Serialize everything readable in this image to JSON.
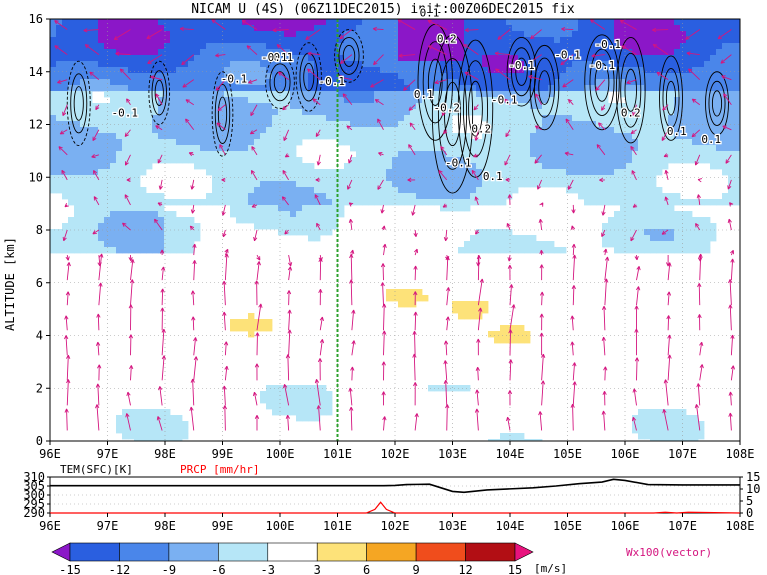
{
  "title": "NICAM U (4S) (06Z11DEC2015) init:00Z06DEC2015 fix",
  "colorbar_unit": "[m/s]",
  "vector_label": "Wx100(vector)",
  "colors": {
    "vector": "#d4157f",
    "contour": "#000000",
    "highlight_line": "#2ca02c",
    "tem_line": "#000000",
    "prcp_line": "#ff0000",
    "prcp_label": "#ff0000"
  },
  "chart_data": [
    {
      "type": "heatmap",
      "description_kind": "longitude-altitude cross section",
      "title": "NICAM U (4S) (06Z11DEC2015) init:00Z06DEC2015 fix",
      "xlabel": "",
      "ylabel": "ALTITUDE [km]",
      "x_ticks": [
        "96E",
        "97E",
        "98E",
        "99E",
        "100E",
        "101E",
        "102E",
        "103E",
        "104E",
        "105E",
        "106E",
        "107E",
        "108E"
      ],
      "x_range": [
        96,
        108
      ],
      "y_ticks": [
        0,
        2,
        4,
        6,
        8,
        10,
        12,
        14,
        16
      ],
      "y_range": [
        0,
        16
      ],
      "grid": true,
      "highlight_longitude": 101,
      "colorbar": {
        "levels": [
          -15,
          -12,
          -9,
          -6,
          -3,
          3,
          6,
          9,
          12,
          15
        ],
        "tick_labels": [
          "-15",
          "-12",
          "-9",
          "-6",
          "-3",
          "3",
          "6",
          "9",
          "12",
          "15"
        ],
        "colors": [
          "#8b17c8",
          "#2a5fe0",
          "#4a86ea",
          "#7ab0f2",
          "#b6e6f7",
          "#ffffff",
          "#fde279",
          "#f5a623",
          "#f04d1c",
          "#b20e14",
          "#e8137e"
        ],
        "unit": "[m/s]"
      },
      "contour_labels": [
        "-0.1",
        "-0.1",
        "-0.1",
        "-0.1",
        "-0.1",
        "-0.1",
        "-0.1",
        "-0.1",
        "-0.1",
        "-0.1",
        "-0.1",
        "0.1",
        "0.1",
        "0.1",
        "0.1",
        "0.1",
        "0.2",
        "0.2",
        "0.2",
        "-0.2"
      ],
      "wind_regions": [
        {
          "band": "upper",
          "y": [
            13,
            16
          ],
          "level": -12
        },
        {
          "band": "upper",
          "y": [
            9,
            13
          ],
          "level": -6
        },
        {
          "band": "mid",
          "y": [
            7,
            9
          ],
          "level": -6
        },
        {
          "band": "low",
          "y": [
            0,
            6
          ],
          "level": 0
        }
      ],
      "warm_patches": [
        {
          "lon": 99.5,
          "alt": 4.4,
          "level": 3
        },
        {
          "lon": 102.2,
          "alt": 5.5,
          "level": 3
        },
        {
          "lon": 103.3,
          "alt": 5.0,
          "level": 3
        },
        {
          "lon": 104.0,
          "alt": 4.0,
          "level": 3
        }
      ]
    },
    {
      "type": "line",
      "description_kind": "surface time series panel",
      "x_ticks": [
        "96E",
        "97E",
        "98E",
        "99E",
        "100E",
        "101E",
        "102E",
        "103E",
        "104E",
        "105E",
        "106E",
        "107E",
        "108E"
      ],
      "x_range": [
        96,
        108
      ],
      "left_axis": {
        "label": "TEM(SFC)[K]",
        "ticks": [
          290,
          295,
          300,
          305,
          310
        ],
        "range": [
          290,
          310
        ]
      },
      "right_axis": {
        "label": "PRCP [mm/hr]",
        "ticks": [
          0,
          5,
          10,
          15
        ],
        "range": [
          0,
          15
        ]
      },
      "series": [
        {
          "name": "TEM(SFC)[K]",
          "x": [
            96,
            97,
            98,
            99,
            100,
            101,
            101.4,
            101.8,
            102.0,
            102.2,
            102.4,
            102.6,
            102.8,
            103.0,
            103.2,
            103.6,
            104.0,
            104.4,
            104.8,
            105.2,
            105.6,
            105.8,
            106.0,
            106.4,
            107,
            108
          ],
          "y": [
            305.2,
            305.2,
            305.2,
            305.2,
            305.2,
            305.2,
            305.2,
            305.2,
            305.3,
            305.8,
            305.9,
            306.0,
            304.0,
            302.0,
            301.5,
            302.8,
            303.4,
            304.0,
            305.0,
            306.3,
            307.2,
            308.7,
            308.1,
            305.8,
            305.6,
            305.6
          ]
        },
        {
          "name": "PRCP [mm/hr]",
          "x": [
            96,
            101.5,
            101.65,
            101.75,
            101.85,
            102.0,
            106.5,
            106.7,
            106.9,
            107.1,
            108
          ],
          "y": [
            0,
            0,
            1.5,
            4.5,
            1.5,
            0,
            0,
            0.3,
            0,
            0.3,
            0
          ]
        }
      ]
    }
  ]
}
